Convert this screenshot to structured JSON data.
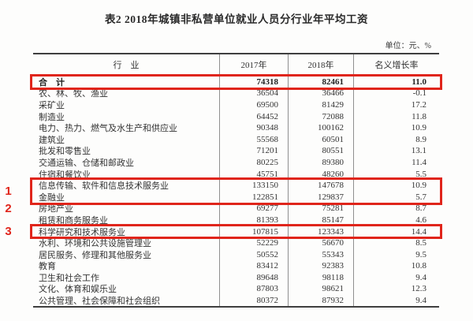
{
  "title": "表2  2018年城镇非私营单位就业人员分行业年平均工资",
  "unit_note": "单位：元、%",
  "table": {
    "headers": [
      "行　业",
      "2017年",
      "2018年",
      "名义增长率"
    ],
    "rows": [
      {
        "industry": "合　计",
        "y2017": "74318",
        "y2018": "82461",
        "growth": "11.0",
        "bold": true
      },
      {
        "industry": "农、林、牧、渔业",
        "y2017": "36504",
        "y2018": "36466",
        "growth": "-0.1"
      },
      {
        "industry": "采矿业",
        "y2017": "69500",
        "y2018": "81429",
        "growth": "17.2"
      },
      {
        "industry": "制造业",
        "y2017": "64452",
        "y2018": "72088",
        "growth": "11.8"
      },
      {
        "industry": "电力、热力、燃气及水生产和供应业",
        "y2017": "90348",
        "y2018": "100162",
        "growth": "10.9"
      },
      {
        "industry": "建筑业",
        "y2017": "55568",
        "y2018": "60501",
        "growth": "8.9"
      },
      {
        "industry": "批发和零售业",
        "y2017": "71201",
        "y2018": "80551",
        "growth": "13.1"
      },
      {
        "industry": "交通运输、仓储和邮政业",
        "y2017": "80225",
        "y2018": "89380",
        "growth": "11.4"
      },
      {
        "industry": "住宿和餐饮业",
        "y2017": "45751",
        "y2018": "48260",
        "growth": "5.5"
      },
      {
        "industry": "信息传输、软件和信息技术服务业",
        "y2017": "133150",
        "y2018": "147678",
        "growth": "10.9"
      },
      {
        "industry": "金融业",
        "y2017": "122851",
        "y2018": "129837",
        "growth": "5.7"
      },
      {
        "industry": "房地产业",
        "y2017": "69277",
        "y2018": "75281",
        "growth": "8.7"
      },
      {
        "industry": "租赁和商务服务业",
        "y2017": "81393",
        "y2018": "85147",
        "growth": "4.6"
      },
      {
        "industry": "科学研究和技术服务业",
        "y2017": "107815",
        "y2018": "123343",
        "growth": "14.4"
      },
      {
        "industry": "水利、环境和公共设施管理业",
        "y2017": "52229",
        "y2018": "56670",
        "growth": "8.5"
      },
      {
        "industry": "居民服务、修理和其他服务业",
        "y2017": "50552",
        "y2018": "55343",
        "growth": "9.5"
      },
      {
        "industry": "教育",
        "y2017": "83412",
        "y2018": "92383",
        "growth": "10.8"
      },
      {
        "industry": "卫生和社会工作",
        "y2017": "89648",
        "y2018": "98118",
        "growth": "9.4"
      },
      {
        "industry": "文化、体育和娱乐业",
        "y2017": "87803",
        "y2018": "98621",
        "growth": "12.3"
      },
      {
        "industry": "公共管理、社会保障和社会组织",
        "y2017": "80372",
        "y2018": "87932",
        "growth": "9.4"
      }
    ]
  },
  "annotations": {
    "highlight_color": "#e0251b",
    "boxes": [
      {
        "from_row": 0,
        "to_row": 0
      },
      {
        "from_row": 9,
        "to_row": 10
      },
      {
        "from_row": 13,
        "to_row": 13
      }
    ],
    "side_labels": [
      {
        "text": "1",
        "from_row": 9,
        "to_row": 10
      },
      {
        "text": "2",
        "from_row": 11,
        "to_row": 11
      },
      {
        "text": "3",
        "from_row": 13,
        "to_row": 13
      }
    ]
  }
}
